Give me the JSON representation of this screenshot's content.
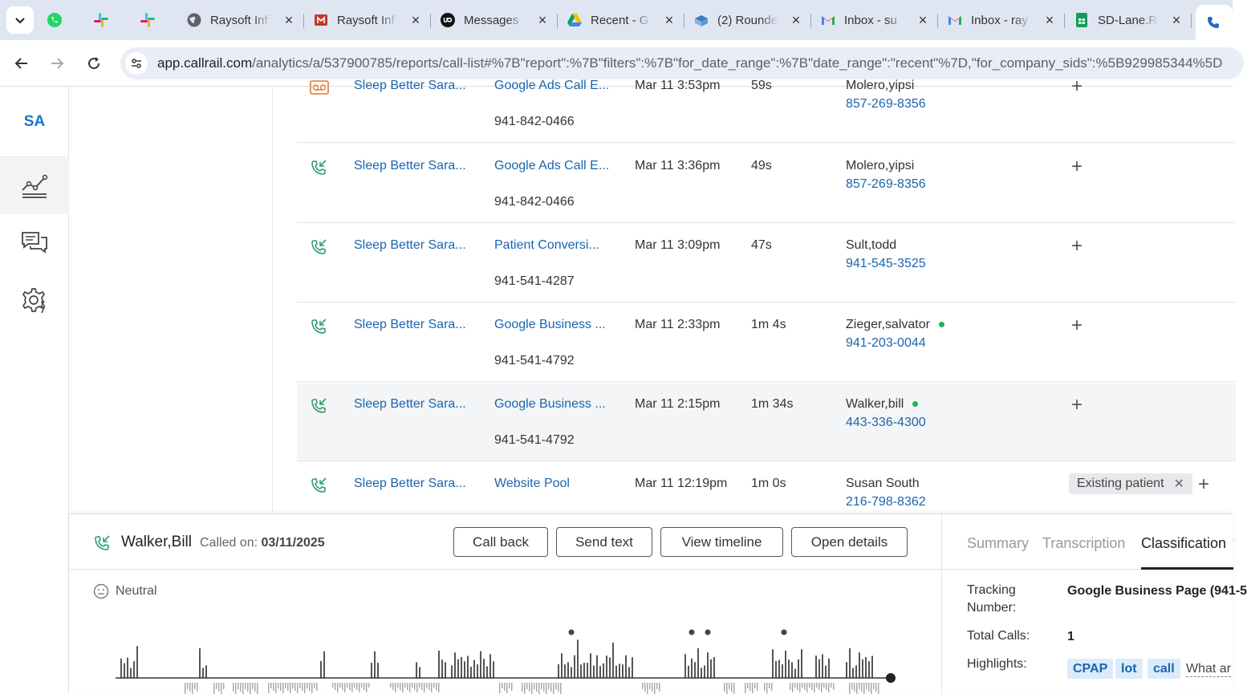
{
  "browser": {
    "tabs": [
      {
        "label": "",
        "icon": "whatsapp-icon",
        "color": "#25d366"
      },
      {
        "label": "",
        "icon": "slack-icon",
        "color": "#e01e5a"
      },
      {
        "label": "",
        "icon": "slack-icon",
        "color": "#e01e5a"
      },
      {
        "label": "Raysoft Inf",
        "icon": "globe-icon"
      },
      {
        "label": "Raysoft Inf",
        "icon": "raysoft-icon",
        "color": "#c0392b"
      },
      {
        "label": "Messages",
        "icon": "upwork-icon"
      },
      {
        "label": "Recent - G",
        "icon": "google-drive-icon"
      },
      {
        "label": "(2) Rounde",
        "icon": "roundcube-icon"
      },
      {
        "label": "Inbox - su",
        "icon": "gmail-icon"
      },
      {
        "label": "Inbox - ray",
        "icon": "gmail-icon"
      },
      {
        "label": "SD-Lane.R",
        "icon": "google-sheets-icon",
        "color": "#0f9d58"
      },
      {
        "label": "",
        "icon": "callrail-icon",
        "active": true
      }
    ],
    "url_domain": "app.callrail.com",
    "url_path": "/analytics/a/537900785/reports/call-list#%7B\"report\":%7B\"filters\":%7B\"for_date_range\":%7B\"date_range\":\"recent\"%7D,\"for_company_sids\":%5B929985344%5D"
  },
  "sidebar": {
    "logo": "SA",
    "items": [
      {
        "icon": "analytics-icon",
        "active": true
      },
      {
        "icon": "conversations-icon",
        "active": false
      },
      {
        "icon": "settings-icon",
        "active": false
      }
    ]
  },
  "calls": [
    {
      "company": "Sleep Better Sara...",
      "source": "Google Ads Call E...",
      "tracking": "941-842-0466",
      "date": "Mar 11 3:53pm",
      "duration": "59s",
      "caller": "Molero,yipsi",
      "phone": "857-269-8356",
      "dot": false
    },
    {
      "company": "Sleep Better Sara...",
      "source": "Google Ads Call E...",
      "tracking": "941-842-0466",
      "date": "Mar 11 3:36pm",
      "duration": "49s",
      "caller": "Molero,yipsi",
      "phone": "857-269-8356",
      "dot": false
    },
    {
      "company": "Sleep Better Sara...",
      "source": "Patient Conversi...",
      "tracking": "941-541-4287",
      "date": "Mar 11 3:09pm",
      "duration": "47s",
      "caller": "Sult,todd",
      "phone": "941-545-3525",
      "dot": false
    },
    {
      "company": "Sleep Better Sara...",
      "source": "Google Business ...",
      "tracking": "941-541-4792",
      "date": "Mar 11 2:33pm",
      "duration": "1m 4s",
      "caller": "Zieger,salvator",
      "phone": "941-203-0044",
      "dot": true
    },
    {
      "company": "Sleep Better Sara...",
      "source": "Google Business ...",
      "tracking": "941-541-4792",
      "date": "Mar 11 2:15pm",
      "duration": "1m 34s",
      "caller": "Walker,bill",
      "phone": "443-336-4300",
      "dot": true
    },
    {
      "company": "Sleep Better Sara...",
      "source": "Website Pool",
      "tracking": "",
      "date": "Mar 11 12:19pm",
      "duration": "1m 0s",
      "caller": "Susan South",
      "phone": "216-798-8362",
      "dot": false,
      "tag": "Existing patient"
    }
  ],
  "panel": {
    "caller": "Walker,Bill",
    "called_on_label": "Called on:",
    "called_on_date": "03/11/2025",
    "buttons": {
      "call_back": "Call back",
      "send_text": "Send text",
      "view_timeline": "View timeline",
      "open_details": "Open details"
    },
    "sentiment": "Neutral",
    "tabs": {
      "summary": "Summary",
      "transcription": "Transcription",
      "classification": "Classification"
    },
    "tracking_number_label": "Tracking Number:",
    "tracking_number_value": "Google Business Page (941-5",
    "total_calls_label": "Total Calls:",
    "total_calls_value": "1",
    "highlights_label": "Highlights:",
    "highlights": [
      "CPAP",
      "lot",
      "call"
    ],
    "highlights_more": "What ar"
  },
  "colors": {
    "link": "#1a65b0",
    "accent_green": "#21b35a",
    "brand": "#1a73c8"
  }
}
